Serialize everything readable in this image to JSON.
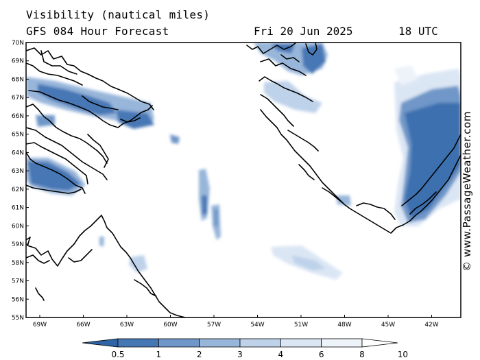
{
  "header": {
    "title": "Visibility (nautical miles)",
    "subtitle": "GFS 084 Hour Forecast",
    "date": "Fri 20 Jun 2025",
    "time": "18 UTC"
  },
  "credit": "© www.PassageWeather.com",
  "lat_labels": [
    "70N",
    "69N",
    "68N",
    "67N",
    "66N",
    "65N",
    "64N",
    "63N",
    "62N",
    "61N",
    "60N",
    "59N",
    "58N",
    "57N",
    "56N",
    "55N"
  ],
  "lon_labels": [
    "69W",
    "66W",
    "63W",
    "60W",
    "57W",
    "54W",
    "51W",
    "48W",
    "45W",
    "42W"
  ],
  "colorbar": {
    "labels": [
      "0.5",
      "1",
      "2",
      "3",
      "4",
      "6",
      "8",
      "10"
    ],
    "colors": [
      "#2e64a6",
      "#4677b5",
      "#6f97c8",
      "#98b6da",
      "#bed2ea",
      "#dbe6f4",
      "#eef3fa",
      "#ffffff"
    ]
  }
}
